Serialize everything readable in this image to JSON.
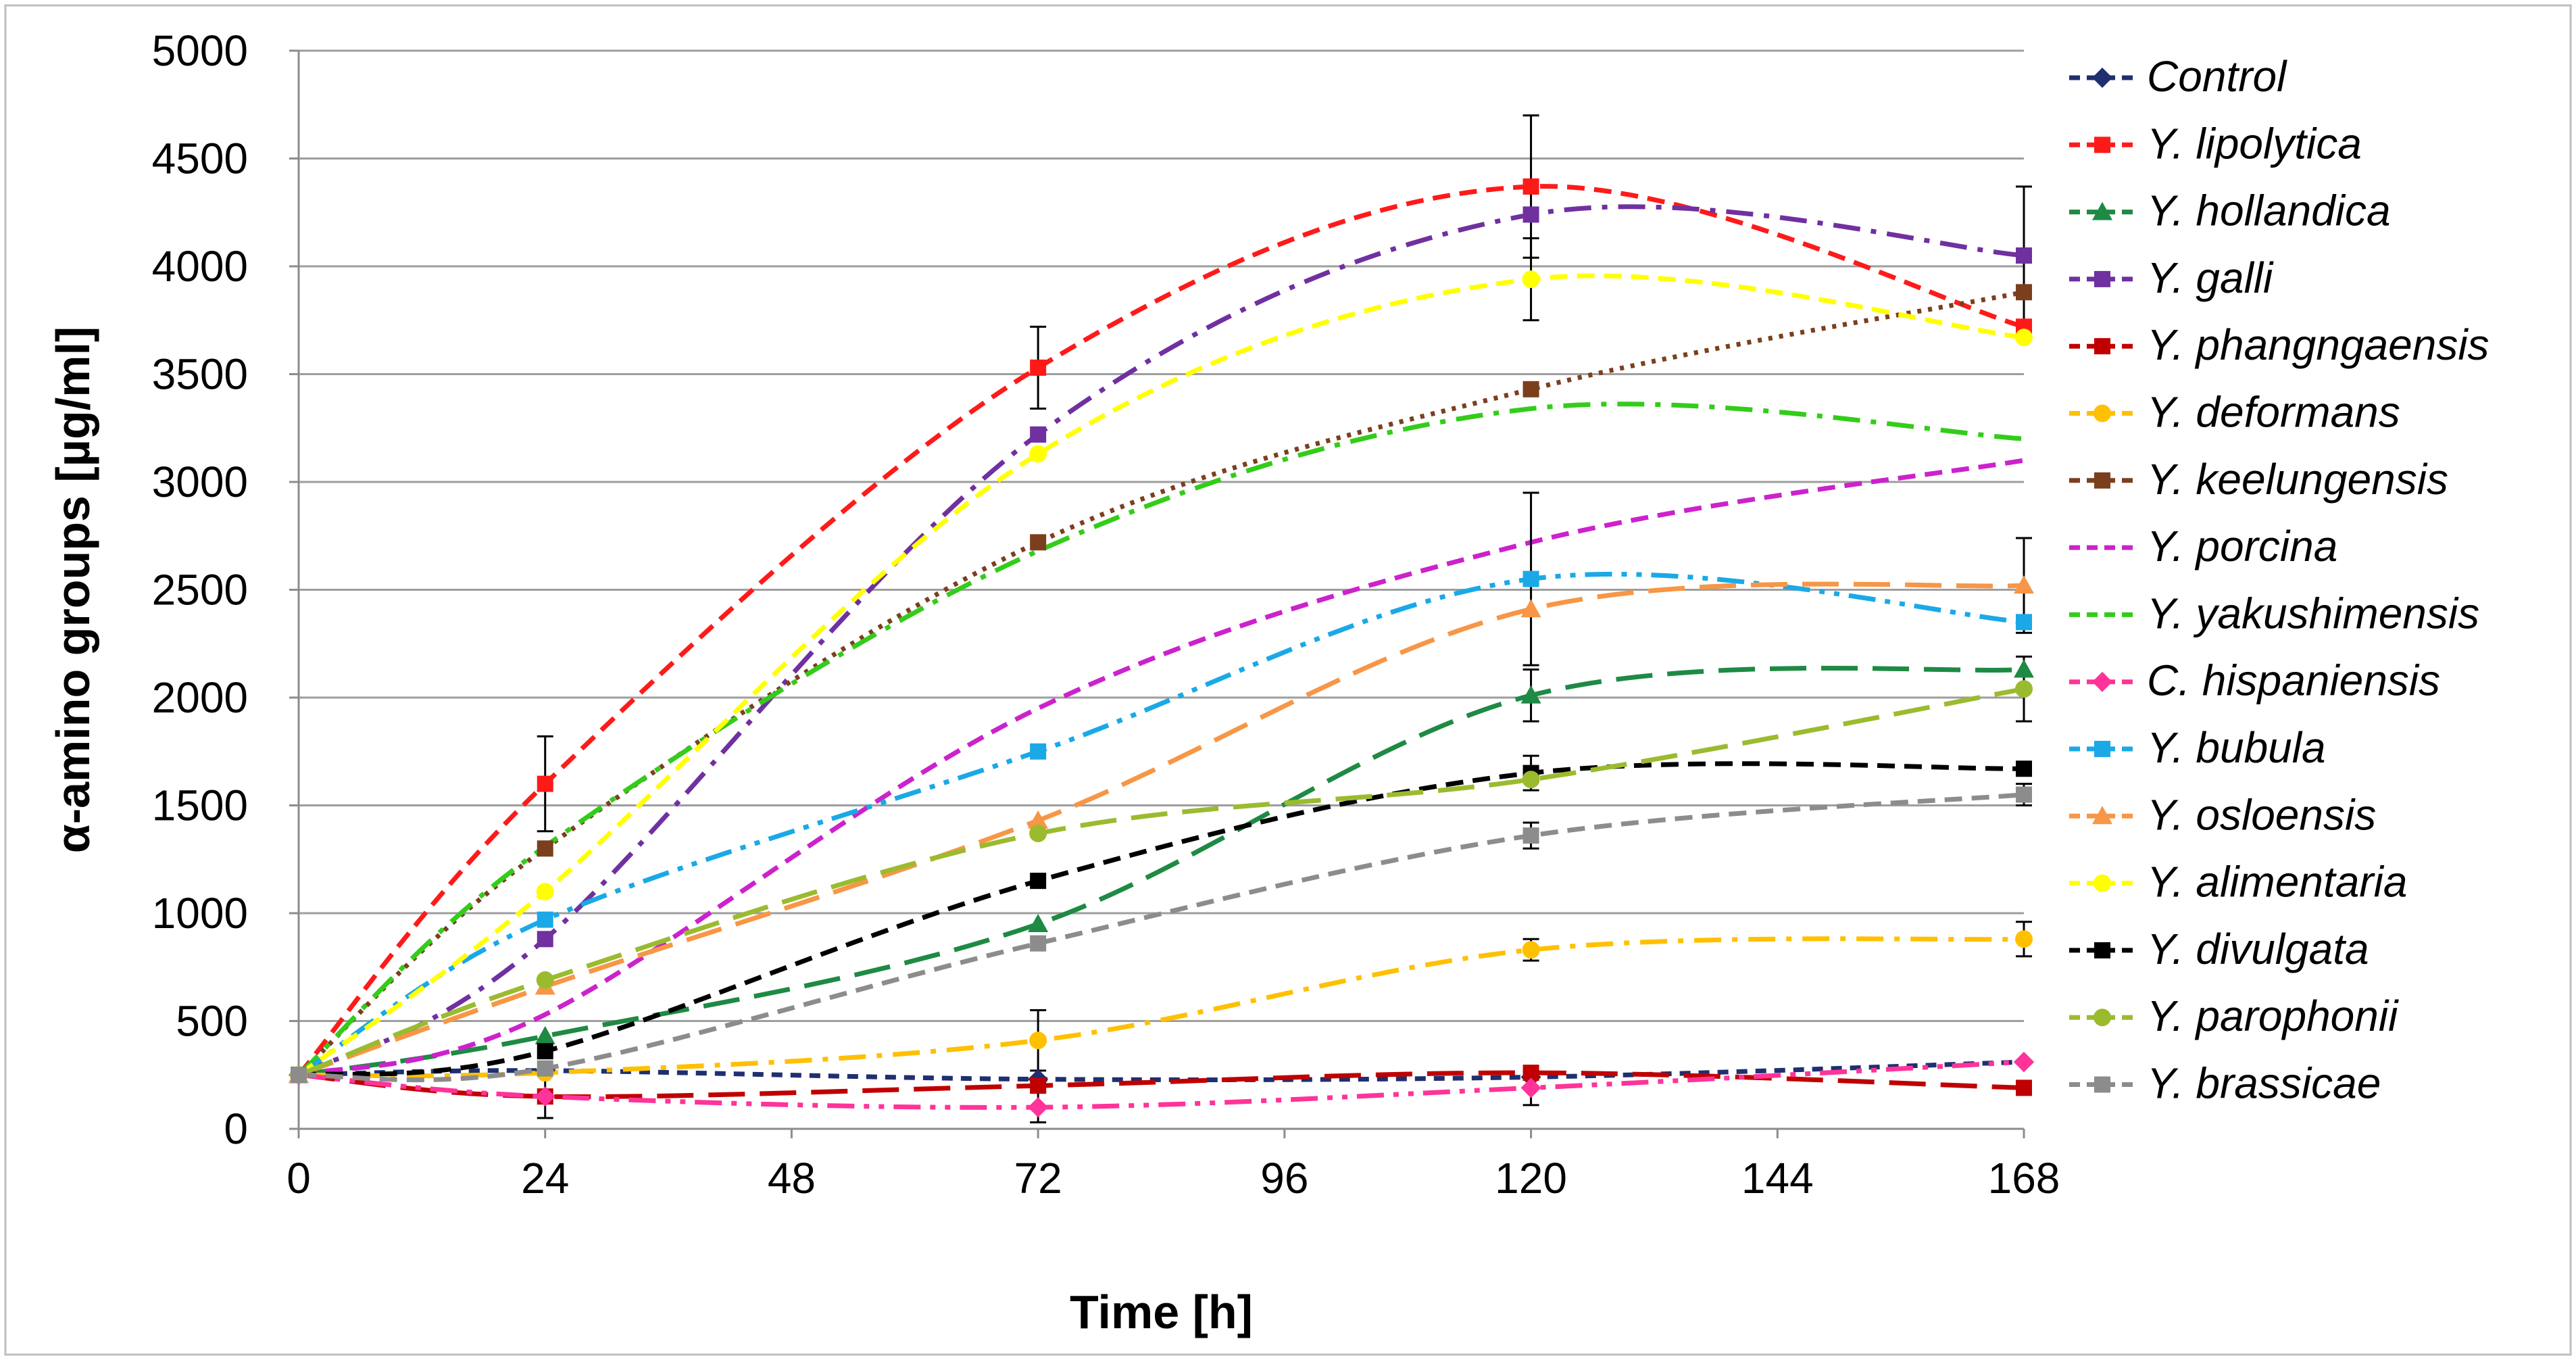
{
  "chart_data": {
    "type": "line",
    "title": "",
    "xlabel": "Time [h]",
    "ylabel": "α-amino groups [µg/ml]",
    "x_ticks": [
      0,
      24,
      48,
      72,
      96,
      120,
      144,
      168
    ],
    "y_ticks": [
      0,
      500,
      1000,
      1500,
      2000,
      2500,
      3000,
      3500,
      4000,
      4500,
      5000
    ],
    "xlim": [
      0,
      168
    ],
    "ylim": [
      0,
      5000
    ],
    "grid": "horizontal",
    "legend_position": "right",
    "x": [
      0,
      24,
      72,
      120,
      168
    ],
    "series": [
      {
        "name": "Control",
        "italic_prefix": "",
        "color": "#1F2F6F",
        "dash": "dash-short",
        "marker": "diamond",
        "values": [
          250,
          270,
          230,
          240,
          310
        ],
        "errors": [
          0,
          0,
          0,
          0,
          0
        ]
      },
      {
        "name": "Y. lipolytica",
        "italic_prefix": "",
        "color": "#FF1A1A",
        "dash": "dash",
        "marker": "square",
        "values": [
          250,
          1600,
          3530,
          4370,
          3720
        ],
        "errors": [
          0,
          220,
          190,
          330,
          0
        ]
      },
      {
        "name": "Y. hollandica",
        "italic_prefix": "",
        "color": "#1E8A44",
        "dash": "dash-long",
        "marker": "triangle",
        "values": [
          250,
          430,
          950,
          2010,
          2130
        ],
        "errors": [
          0,
          0,
          0,
          120,
          0
        ]
      },
      {
        "name": "Y. galli",
        "italic_prefix": "",
        "color": "#7030A0",
        "dash": "dash-dot",
        "marker": "square",
        "values": [
          250,
          880,
          3220,
          4240,
          4050
        ],
        "errors": [
          0,
          0,
          0,
          0,
          320
        ]
      },
      {
        "name": "Y. phangngaensis",
        "italic_prefix": "",
        "color": "#C00000",
        "dash": "dash-long",
        "marker": "square",
        "values": [
          250,
          150,
          200,
          260,
          190
        ],
        "errors": [
          0,
          0,
          0,
          0,
          0
        ]
      },
      {
        "name": "Y. deformans",
        "italic_prefix": "",
        "color": "#FFC000",
        "dash": "dash-dot",
        "marker": "circle",
        "values": [
          250,
          260,
          410,
          830,
          880
        ],
        "errors": [
          0,
          0,
          140,
          50,
          80
        ]
      },
      {
        "name": "Y. keelungensis",
        "italic_prefix": "",
        "color": "#7B3F1E",
        "dash": "dot",
        "marker": "square",
        "values": [
          250,
          1300,
          2720,
          3430,
          3880
        ],
        "errors": [
          0,
          0,
          0,
          0,
          0
        ]
      },
      {
        "name": "Y. porcina",
        "italic_prefix": "",
        "color": "#CC22CC",
        "dash": "dash",
        "marker": "none",
        "values": [
          250,
          530,
          1950,
          2720,
          3100
        ],
        "errors": [
          0,
          0,
          0,
          0,
          0
        ]
      },
      {
        "name": "Y. yakushimensis",
        "italic_prefix": "",
        "color": "#33CC1A",
        "dash": "dash-dot",
        "marker": "none",
        "values": [
          250,
          1310,
          2680,
          3340,
          3200
        ],
        "errors": [
          0,
          0,
          0,
          0,
          0
        ]
      },
      {
        "name": "C. hispaniensis",
        "italic_prefix": "",
        "color": "#FF3399",
        "dash": "dash-dot-dot",
        "marker": "diamond",
        "values": [
          250,
          150,
          100,
          190,
          310
        ],
        "errors": [
          0,
          100,
          70,
          80,
          0
        ]
      },
      {
        "name": "Y. bubula",
        "italic_prefix": "",
        "color": "#1AA9E6",
        "dash": "dash-dot-dot",
        "marker": "square",
        "values": [
          250,
          970,
          1750,
          2550,
          2350
        ],
        "errors": [
          0,
          0,
          0,
          400,
          0
        ]
      },
      {
        "name": "Y. osloensis",
        "italic_prefix": "",
        "color": "#F79646",
        "dash": "dash-long",
        "marker": "triangle",
        "values": [
          250,
          660,
          1430,
          2410,
          2520
        ],
        "errors": [
          0,
          0,
          0,
          0,
          220
        ]
      },
      {
        "name": "Y. alimentaria",
        "italic_prefix": "",
        "color": "#FFFF00",
        "dash": "dash",
        "marker": "circle",
        "values": [
          250,
          1100,
          3130,
          3940,
          3670
        ],
        "errors": [
          0,
          0,
          0,
          190,
          0
        ]
      },
      {
        "name": "Y. divulgata",
        "italic_prefix": "",
        "color": "#000000",
        "dash": "dash",
        "marker": "square",
        "values": [
          250,
          360,
          1150,
          1650,
          1670
        ],
        "errors": [
          0,
          0,
          0,
          80,
          0
        ]
      },
      {
        "name": "Y. parophonii",
        "italic_prefix": "",
        "color": "#9BBB2F",
        "dash": "dash-long",
        "marker": "circle",
        "values": [
          250,
          690,
          1370,
          1620,
          2040
        ],
        "errors": [
          0,
          0,
          0,
          0,
          150
        ]
      },
      {
        "name": "Y. brassicae",
        "italic_prefix": "",
        "color": "#8C8C8C",
        "dash": "dash",
        "marker": "square",
        "values": [
          250,
          280,
          860,
          1360,
          1550
        ],
        "errors": [
          0,
          0,
          0,
          60,
          50
        ]
      }
    ]
  }
}
